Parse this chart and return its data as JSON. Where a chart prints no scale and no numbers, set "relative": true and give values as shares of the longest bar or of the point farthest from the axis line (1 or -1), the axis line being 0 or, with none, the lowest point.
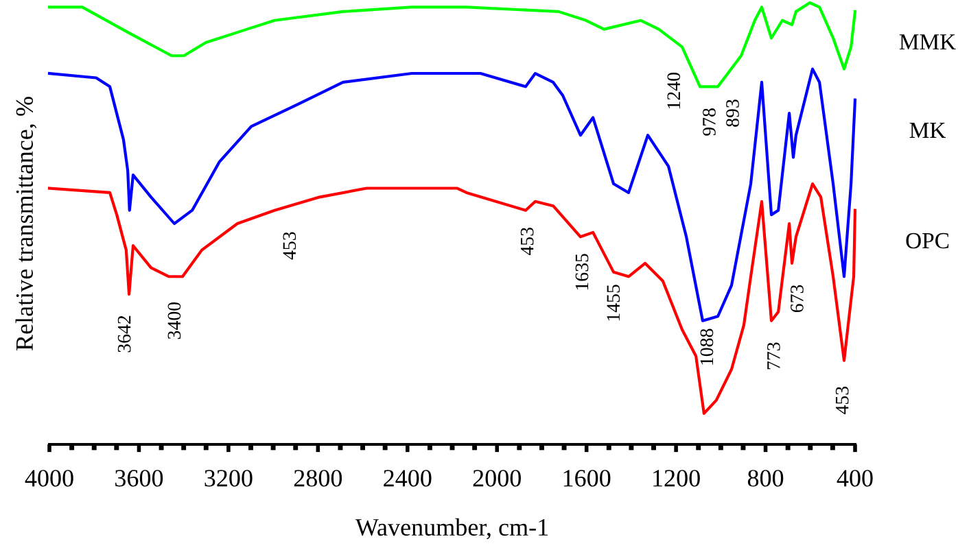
{
  "chart_data": {
    "type": "line",
    "relative": true,
    "xlabel": "Wavenumber, cm-1",
    "ylabel": "Relative transmittance, %",
    "xlim": [
      4000,
      400
    ],
    "xticks": [
      4000,
      3600,
      3200,
      2800,
      2400,
      2000,
      1600,
      1200,
      800,
      400
    ],
    "tick_labels": "x",
    "marker": "none",
    "line_style": "solid",
    "series": [
      {
        "name": "MMK",
        "color": "#00ff00",
        "x": [
          4000,
          3853,
          3638,
          3454,
          3399,
          3301,
          3117,
          2994,
          2688,
          2381,
          2136,
          1725,
          1602,
          1522,
          1357,
          1277,
          1173,
          1093,
          1013,
          909,
          848,
          817,
          774,
          725,
          682,
          664,
          602,
          559,
          498,
          449,
          418,
          400
        ],
        "values": [
          0.99,
          0.99,
          0.93,
          0.88,
          0.88,
          0.91,
          0.94,
          0.96,
          0.98,
          0.99,
          0.99,
          0.98,
          0.96,
          0.94,
          0.96,
          0.94,
          0.9,
          0.81,
          0.81,
          0.88,
          0.96,
          0.99,
          0.92,
          0.96,
          0.95,
          0.98,
          1.0,
          0.99,
          0.92,
          0.85,
          0.9,
          0.98
        ]
      },
      {
        "name": "MK",
        "color": "#0000ff",
        "x": [
          4000,
          3791,
          3730,
          3669,
          3650,
          3642,
          3626,
          3546,
          3442,
          3362,
          3240,
          3098,
          2890,
          2688,
          2381,
          2074,
          1872,
          1829,
          1749,
          1706,
          1627,
          1571,
          1479,
          1412,
          1326,
          1234,
          1154,
          1081,
          1013,
          952,
          866,
          817,
          774,
          743,
          694,
          676,
          664,
          590,
          559,
          498,
          449,
          418,
          400
        ],
        "values": [
          0.84,
          0.83,
          0.81,
          0.69,
          0.62,
          0.53,
          0.61,
          0.56,
          0.5,
          0.53,
          0.64,
          0.72,
          0.77,
          0.82,
          0.84,
          0.84,
          0.81,
          0.84,
          0.82,
          0.79,
          0.7,
          0.74,
          0.59,
          0.57,
          0.7,
          0.63,
          0.47,
          0.28,
          0.29,
          0.36,
          0.59,
          0.82,
          0.52,
          0.53,
          0.75,
          0.65,
          0.7,
          0.85,
          0.82,
          0.59,
          0.38,
          0.59,
          0.78
        ]
      },
      {
        "name": "OPC",
        "color": "#ff0000",
        "x": [
          4000,
          3730,
          3699,
          3657,
          3644,
          3626,
          3546,
          3466,
          3405,
          3319,
          3160,
          2994,
          2792,
          2583,
          2179,
          2136,
          1872,
          1829,
          1749,
          1627,
          1571,
          1479,
          1412,
          1338,
          1259,
          1173,
          1111,
          1075,
          1020,
          952,
          897,
          866,
          817,
          774,
          743,
          694,
          682,
          664,
          590,
          553,
          498,
          449,
          431,
          406,
          400
        ],
        "values": [
          0.58,
          0.57,
          0.52,
          0.44,
          0.34,
          0.45,
          0.4,
          0.38,
          0.38,
          0.44,
          0.5,
          0.53,
          0.56,
          0.58,
          0.58,
          0.57,
          0.53,
          0.55,
          0.54,
          0.47,
          0.48,
          0.39,
          0.38,
          0.41,
          0.37,
          0.26,
          0.2,
          0.07,
          0.1,
          0.17,
          0.27,
          0.38,
          0.55,
          0.28,
          0.3,
          0.5,
          0.41,
          0.47,
          0.59,
          0.56,
          0.38,
          0.19,
          0.27,
          0.38,
          0.53
        ]
      }
    ],
    "annotations": [
      "3642",
      "3400",
      "453",
      "453",
      "1635",
      "1455",
      "1088",
      "773",
      "673",
      "453",
      "1240",
      "978",
      "893"
    ]
  }
}
